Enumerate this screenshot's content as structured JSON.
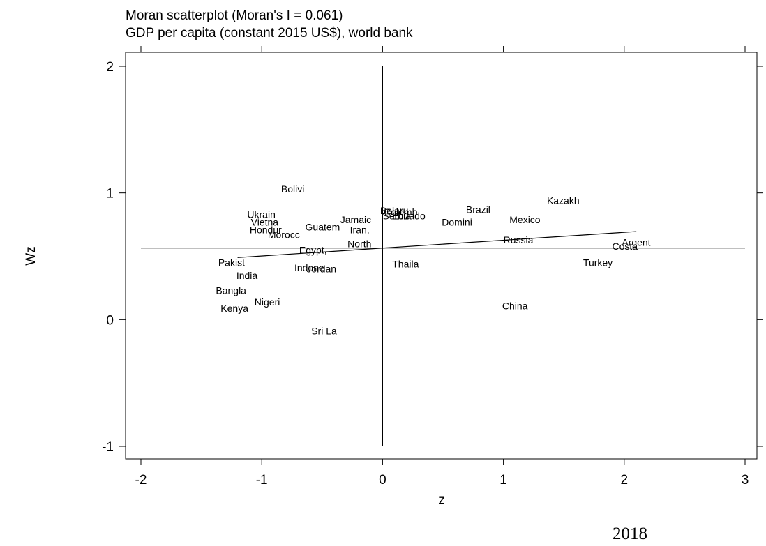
{
  "chart_data": {
    "type": "scatter",
    "title_line1": "Moran scatterplot (Moran's I = 0.061)",
    "title_line2": "GDP per capita (constant 2015 US$), world bank",
    "xlabel": "z",
    "ylabel": "Wz",
    "xlim": [
      -2,
      3
    ],
    "ylim": [
      -1,
      2
    ],
    "x_ticks": [
      "-2",
      "-1",
      "0",
      "1",
      "2",
      "3"
    ],
    "y_ticks": [
      "-1",
      "0",
      "1",
      "2"
    ],
    "x_tick_values": [
      -2,
      -1,
      0,
      1,
      2,
      3
    ],
    "y_tick_values": [
      -1,
      0,
      1,
      2
    ],
    "reference_lines": {
      "x": 0,
      "y": 0.565
    },
    "fit_line": {
      "x": [
        -1.2,
        2.1
      ],
      "y": [
        0.49,
        0.695
      ]
    },
    "points": [
      {
        "label": "Bolivi",
        "x": -0.84,
        "y": 1.03
      },
      {
        "label": "Ukrain",
        "x": -1.12,
        "y": 0.83
      },
      {
        "label": "Vietna",
        "x": -1.09,
        "y": 0.77
      },
      {
        "label": "Hondur",
        "x": -1.1,
        "y": 0.71
      },
      {
        "label": "Morocc",
        "x": -0.95,
        "y": 0.67
      },
      {
        "label": "Guatem",
        "x": -0.64,
        "y": 0.73
      },
      {
        "label": "Jamaic",
        "x": -0.35,
        "y": 0.79
      },
      {
        "label": "Iran,",
        "x": -0.27,
        "y": 0.71
      },
      {
        "label": "North",
        "x": -0.29,
        "y": 0.6
      },
      {
        "label": "Egypt,",
        "x": -0.69,
        "y": 0.55
      },
      {
        "label": "Pakist",
        "x": -1.36,
        "y": 0.45
      },
      {
        "label": "India",
        "x": -1.21,
        "y": 0.35
      },
      {
        "label": "Indone",
        "x": -0.73,
        "y": 0.41
      },
      {
        "label": "Jordan",
        "x": -0.63,
        "y": 0.4
      },
      {
        "label": "Bangla",
        "x": -1.38,
        "y": 0.23
      },
      {
        "label": "Nigeri",
        "x": -1.06,
        "y": 0.14
      },
      {
        "label": "Kenya",
        "x": -1.34,
        "y": 0.09
      },
      {
        "label": "Sri La",
        "x": -0.59,
        "y": -0.09
      },
      {
        "label": "Belaru",
        "x": -0.02,
        "y": 0.86
      },
      {
        "label": "Colomb",
        "x": 0.01,
        "y": 0.85
      },
      {
        "label": "Serbia",
        "x": 0.0,
        "y": 0.82
      },
      {
        "label": "Ecuado",
        "x": 0.08,
        "y": 0.82
      },
      {
        "label": "Thaila",
        "x": 0.08,
        "y": 0.44
      },
      {
        "label": "Brazil",
        "x": 0.69,
        "y": 0.87
      },
      {
        "label": "Domini",
        "x": 0.49,
        "y": 0.77
      },
      {
        "label": "Mexico",
        "x": 1.05,
        "y": 0.79
      },
      {
        "label": "Kazakh",
        "x": 1.36,
        "y": 0.94
      },
      {
        "label": "Russia",
        "x": 1.0,
        "y": 0.63
      },
      {
        "label": "China",
        "x": 0.99,
        "y": 0.11
      },
      {
        "label": "Turkey",
        "x": 1.66,
        "y": 0.45
      },
      {
        "label": "Costa",
        "x": 1.9,
        "y": 0.58
      },
      {
        "label": "Argent",
        "x": 1.98,
        "y": 0.61
      }
    ]
  },
  "footer_year": "2018"
}
